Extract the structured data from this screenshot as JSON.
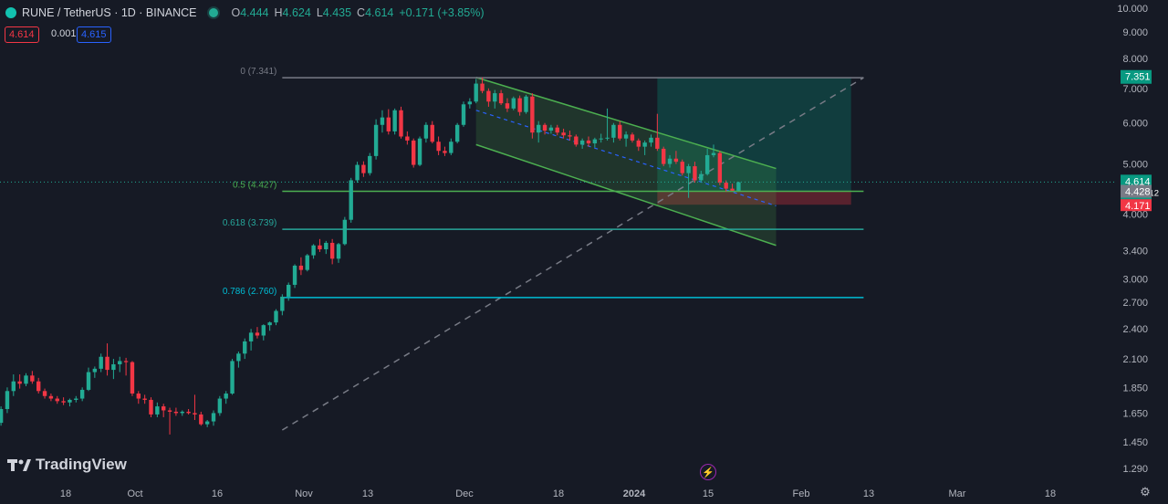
{
  "header": {
    "symbol": "RUNE / TetherUS · 1D · BINANCE",
    "o_label": "O",
    "o_value": "4.444",
    "h_label": "H",
    "h_value": "4.624",
    "l_label": "L",
    "l_value": "4.435",
    "c_label": "C",
    "c_value": "4.614",
    "change": "+0.171 (+3.85%)"
  },
  "price_boxes": {
    "sell": "4.614",
    "spread": "0.001",
    "buy": "4.615"
  },
  "branding": {
    "logo_text": "TradingView"
  },
  "colors": {
    "up": "#22ab94",
    "down": "#f23645",
    "background": "#161a25",
    "channel": "#4caf50",
    "fib_618": "#26a69a",
    "fib_786": "#00bcd4"
  },
  "chart_data": {
    "type": "candlestick",
    "title": "RUNE / TetherUS · 1D · BINANCE",
    "y_scale": "log",
    "y_ticks": [
      "10.000",
      "9.000",
      "8.000",
      "7.000",
      "6.000",
      "5.000",
      "4.000",
      "3.400",
      "3.000",
      "2.700",
      "2.400",
      "2.100",
      "1.850",
      "1.650",
      "1.450",
      "1.290"
    ],
    "x_ticks": [
      "18",
      "Oct",
      "16",
      "Nov",
      "13",
      "Dec",
      "18",
      "2024",
      "15",
      "Feb",
      "13",
      "Mar",
      "18"
    ],
    "x_range_days": [
      -80,
      73
    ],
    "price_labels": [
      {
        "text": "7.351",
        "value": 7.351,
        "color": "#089981"
      },
      {
        "text": "4.614",
        "value": 4.614,
        "color": "#089981",
        "countdown": "13:42:12"
      },
      {
        "text": "4.428",
        "value": 4.428,
        "color": "#787b86"
      },
      {
        "text": "4.171",
        "value": 4.171,
        "color": "#f23645"
      }
    ],
    "fib_levels": [
      {
        "label": "0 (7.341)",
        "value": 7.341,
        "color": "#787b86"
      },
      {
        "label": "0.5 (4.427)",
        "value": 4.427,
        "color": "#4caf50"
      },
      {
        "label": "0.618 (3.739)",
        "value": 3.739,
        "color": "#26a69a"
      },
      {
        "label": "0.786 (2.760)",
        "value": 2.76,
        "color": "#00bcd4"
      }
    ],
    "fib_anchor": {
      "day_start": -29,
      "day_end": 64,
      "low": 1.53,
      "high": 7.341
    },
    "channel": {
      "day_start": 2,
      "day_end": 50,
      "upper": [
        7.35,
        4.9
      ],
      "lower": [
        5.45,
        3.48
      ],
      "mid": [
        6.35,
        4.15
      ]
    },
    "position": {
      "day_start": 31,
      "day_end": 62,
      "entry": 4.428,
      "target": 7.351,
      "stop": 4.171
    },
    "candles": [
      [
        -80,
        1.57,
        1.6,
        1.54,
        1.58
      ],
      [
        -79,
        1.58,
        1.63,
        1.55,
        1.61
      ],
      [
        -78,
        1.61,
        1.62,
        1.55,
        1.56
      ],
      [
        -77,
        1.56,
        1.58,
        1.48,
        1.5
      ],
      [
        -76,
        1.5,
        1.55,
        1.46,
        1.53
      ],
      [
        -75,
        1.53,
        1.6,
        1.5,
        1.58
      ],
      [
        -74,
        1.58,
        1.7,
        1.56,
        1.68
      ],
      [
        -73,
        1.68,
        1.85,
        1.65,
        1.82
      ],
      [
        -72,
        1.82,
        1.96,
        1.78,
        1.9
      ],
      [
        -71,
        1.9,
        1.96,
        1.84,
        1.88
      ],
      [
        -70,
        1.88,
        1.97,
        1.86,
        1.95
      ],
      [
        -69,
        1.95,
        1.99,
        1.88,
        1.9
      ],
      [
        -68,
        1.9,
        1.93,
        1.8,
        1.82
      ],
      [
        -67,
        1.82,
        1.84,
        1.76,
        1.78
      ],
      [
        -66,
        1.78,
        1.8,
        1.74,
        1.76
      ],
      [
        -65,
        1.76,
        1.78,
        1.72,
        1.74
      ],
      [
        -64,
        1.74,
        1.77,
        1.71,
        1.73
      ],
      [
        -63,
        1.73,
        1.76,
        1.7,
        1.75
      ],
      [
        -62,
        1.75,
        1.78,
        1.73,
        1.76
      ],
      [
        -61,
        1.76,
        1.85,
        1.74,
        1.83
      ],
      [
        -60,
        1.83,
        2.02,
        1.82,
        1.98
      ],
      [
        -59,
        1.98,
        2.03,
        1.93,
        2.01
      ],
      [
        -58,
        2.01,
        2.15,
        1.98,
        2.12
      ],
      [
        -57,
        2.12,
        2.25,
        1.95,
        2.0
      ],
      [
        -56,
        2.0,
        2.1,
        1.92,
        2.05
      ],
      [
        -55,
        2.05,
        2.12,
        1.98,
        2.08
      ],
      [
        -54,
        2.08,
        2.11,
        1.95,
        2.07
      ],
      [
        -53,
        2.07,
        2.08,
        1.78,
        1.8
      ],
      [
        -52,
        1.8,
        1.82,
        1.72,
        1.76
      ],
      [
        -51,
        1.76,
        1.79,
        1.72,
        1.75
      ],
      [
        -50,
        1.75,
        1.77,
        1.62,
        1.64
      ],
      [
        -49,
        1.64,
        1.73,
        1.62,
        1.7
      ],
      [
        -48,
        1.7,
        1.72,
        1.62,
        1.67
      ],
      [
        -47,
        1.67,
        1.69,
        1.5,
        1.66
      ],
      [
        -46,
        1.66,
        1.69,
        1.63,
        1.65
      ],
      [
        -45,
        1.65,
        1.67,
        1.63,
        1.66
      ],
      [
        -44,
        1.66,
        1.68,
        1.64,
        1.65
      ],
      [
        -43,
        1.65,
        1.79,
        1.6,
        1.64
      ],
      [
        -42,
        1.64,
        1.66,
        1.56,
        1.57
      ],
      [
        -41,
        1.57,
        1.6,
        1.55,
        1.59
      ],
      [
        -40,
        1.59,
        1.67,
        1.56,
        1.65
      ],
      [
        -39,
        1.65,
        1.78,
        1.63,
        1.76
      ],
      [
        -38,
        1.76,
        1.82,
        1.72,
        1.8
      ],
      [
        -37,
        1.8,
        2.1,
        1.79,
        2.08
      ],
      [
        -36,
        2.08,
        2.17,
        2.02,
        2.15
      ],
      [
        -35,
        2.15,
        2.3,
        2.1,
        2.27
      ],
      [
        -34,
        2.27,
        2.4,
        2.18,
        2.36
      ],
      [
        -33,
        2.36,
        2.42,
        2.3,
        2.33
      ],
      [
        -32,
        2.33,
        2.45,
        2.28,
        2.44
      ],
      [
        -31,
        2.44,
        2.48,
        2.38,
        2.47
      ],
      [
        -30,
        2.47,
        2.62,
        2.44,
        2.6
      ],
      [
        -29,
        2.6,
        2.8,
        2.55,
        2.77
      ],
      [
        -28,
        2.77,
        2.95,
        2.72,
        2.92
      ],
      [
        -27,
        2.92,
        3.2,
        2.88,
        3.18
      ],
      [
        -26,
        3.18,
        3.3,
        3.05,
        3.12
      ],
      [
        -25,
        3.12,
        3.35,
        3.1,
        3.33
      ],
      [
        -24,
        3.33,
        3.5,
        3.28,
        3.48
      ],
      [
        -23,
        3.48,
        3.58,
        3.38,
        3.42
      ],
      [
        -22,
        3.42,
        3.55,
        3.35,
        3.52
      ],
      [
        -21,
        3.52,
        3.58,
        3.2,
        3.28
      ],
      [
        -20,
        3.28,
        3.52,
        3.22,
        3.5
      ],
      [
        -19,
        3.5,
        3.95,
        3.48,
        3.9
      ],
      [
        -18,
        3.9,
        4.7,
        3.85,
        4.65
      ],
      [
        -17,
        4.65,
        5.05,
        4.6,
        4.98
      ],
      [
        -16,
        4.98,
        5.06,
        4.72,
        4.8
      ],
      [
        -15,
        4.8,
        5.25,
        4.75,
        5.18
      ],
      [
        -14,
        5.18,
        6.1,
        5.1,
        5.95
      ],
      [
        -13,
        5.95,
        6.35,
        5.75,
        6.15
      ],
      [
        -12,
        6.15,
        6.38,
        5.7,
        5.78
      ],
      [
        -11,
        5.78,
        6.4,
        5.7,
        6.35
      ],
      [
        -10,
        6.35,
        6.45,
        5.6,
        5.65
      ],
      [
        -9,
        5.65,
        5.78,
        5.45,
        5.55
      ],
      [
        -8,
        5.55,
        5.6,
        4.92,
        4.98
      ],
      [
        -7,
        4.98,
        5.65,
        4.95,
        5.6
      ],
      [
        -6,
        5.6,
        6.02,
        5.5,
        5.95
      ],
      [
        -5,
        5.95,
        6.05,
        5.48,
        5.52
      ],
      [
        -4,
        5.52,
        5.65,
        5.2,
        5.3
      ],
      [
        -3,
        5.3,
        5.4,
        5.18,
        5.25
      ],
      [
        -2,
        5.25,
        5.6,
        5.2,
        5.52
      ],
      [
        -1,
        5.52,
        6.0,
        5.48,
        5.95
      ],
      [
        0,
        5.95,
        6.6,
        5.9,
        6.52
      ],
      [
        1,
        6.52,
        6.7,
        6.4,
        6.6
      ],
      [
        2,
        6.6,
        7.3,
        6.55,
        7.15
      ],
      [
        3,
        7.15,
        7.35,
        6.85,
        6.92
      ],
      [
        4,
        6.92,
        7.0,
        6.45,
        6.6
      ],
      [
        5,
        6.6,
        6.95,
        6.4,
        6.85
      ],
      [
        6,
        6.85,
        6.95,
        6.5,
        6.55
      ],
      [
        7,
        6.55,
        6.7,
        6.3,
        6.4
      ],
      [
        8,
        6.4,
        6.75,
        6.35,
        6.7
      ],
      [
        9,
        6.7,
        6.78,
        6.2,
        6.3
      ],
      [
        10,
        6.3,
        6.8,
        6.25,
        6.75
      ],
      [
        11,
        6.75,
        6.85,
        5.6,
        5.75
      ],
      [
        12,
        5.75,
        6.05,
        5.5,
        5.95
      ],
      [
        13,
        5.95,
        6.0,
        5.7,
        5.8
      ],
      [
        14,
        5.8,
        5.95,
        5.72,
        5.88
      ],
      [
        15,
        5.88,
        5.95,
        5.68,
        5.75
      ],
      [
        16,
        5.75,
        5.85,
        5.6,
        5.68
      ],
      [
        17,
        5.68,
        5.8,
        5.55,
        5.65
      ],
      [
        18,
        5.65,
        5.7,
        5.4,
        5.45
      ],
      [
        19,
        5.45,
        5.6,
        5.35,
        5.55
      ],
      [
        20,
        5.55,
        5.65,
        5.4,
        5.48
      ],
      [
        21,
        5.48,
        5.62,
        5.38,
        5.58
      ],
      [
        22,
        5.58,
        5.72,
        5.5,
        5.6
      ],
      [
        23,
        5.6,
        6.4,
        5.55,
        5.62
      ],
      [
        24,
        5.62,
        6.0,
        5.5,
        5.95
      ],
      [
        25,
        5.95,
        6.05,
        5.55,
        5.6
      ],
      [
        26,
        5.6,
        5.78,
        5.4,
        5.7
      ],
      [
        27,
        5.7,
        5.75,
        5.5,
        5.55
      ],
      [
        28,
        5.55,
        5.6,
        5.3,
        5.4
      ],
      [
        29,
        5.4,
        5.55,
        5.2,
        5.5
      ],
      [
        30,
        5.5,
        5.7,
        5.4,
        5.62
      ],
      [
        31,
        5.62,
        6.25,
        5.3,
        5.35
      ],
      [
        32,
        5.35,
        5.4,
        4.95,
        5.0
      ],
      [
        33,
        5.0,
        5.2,
        4.92,
        5.12
      ],
      [
        34,
        5.12,
        5.3,
        5.0,
        5.05
      ],
      [
        35,
        5.05,
        5.1,
        4.75,
        4.8
      ],
      [
        36,
        4.8,
        5.0,
        4.3,
        4.95
      ],
      [
        37,
        4.95,
        5.05,
        4.6,
        4.65
      ],
      [
        38,
        4.65,
        4.85,
        4.6,
        4.78
      ],
      [
        39,
        4.78,
        5.35,
        4.75,
        5.2
      ],
      [
        40,
        5.2,
        5.45,
        5.15,
        5.25
      ],
      [
        41,
        5.25,
        5.3,
        4.55,
        4.6
      ],
      [
        42,
        4.6,
        4.65,
        4.42,
        4.48
      ],
      [
        43,
        4.48,
        4.58,
        4.44,
        4.44
      ],
      [
        44,
        4.44,
        4.62,
        4.43,
        4.61
      ]
    ]
  }
}
